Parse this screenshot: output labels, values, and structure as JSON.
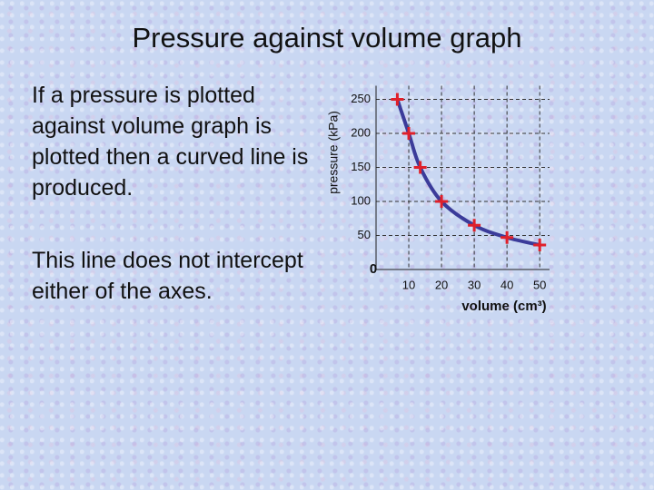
{
  "title": "Pressure against volume graph",
  "paragraphs": [
    "If a pressure is plotted against volume graph is plotted then a curved line is produced.",
    "This line does not intercept either of the axes."
  ],
  "chart_data": {
    "type": "scatter",
    "xlabel": "volume (cm³)",
    "ylabel": "pressure (kPa)",
    "origin_label": "0",
    "series": [
      {
        "color": "#e0202a",
        "line_color": "#3b3b9a",
        "x": [
          6.5,
          10,
          13.5,
          20,
          30,
          40,
          50
        ],
        "values": [
          250,
          200,
          150,
          100,
          65,
          47,
          36
        ]
      }
    ],
    "xlim": [
      0,
      53
    ],
    "ylim": [
      0,
      270
    ],
    "xticks": [
      10,
      20,
      30,
      40,
      50
    ],
    "yticks": [
      50,
      100,
      150,
      200,
      250
    ],
    "grid": true
  }
}
